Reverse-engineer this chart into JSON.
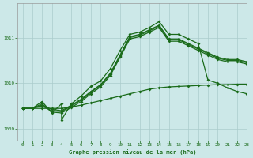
{
  "title": "Graphe pression niveau de la mer (hPa)",
  "bg_color": "#cce8e8",
  "line_color": "#1a6b1a",
  "grid_color": "#aacccc",
  "xlim": [
    -0.5,
    23
  ],
  "ylim": [
    1008.75,
    1011.75
  ],
  "yticks": [
    1009,
    1010,
    1011
  ],
  "xticks": [
    0,
    1,
    2,
    3,
    4,
    5,
    6,
    7,
    8,
    9,
    10,
    11,
    12,
    13,
    14,
    15,
    16,
    17,
    18,
    19,
    20,
    21,
    22,
    23
  ],
  "line_main": {
    "x": [
      0,
      1,
      2,
      3,
      4,
      4,
      5,
      6,
      7,
      8,
      9,
      10,
      11,
      12,
      13,
      14,
      15,
      16,
      17,
      18,
      19,
      20,
      21,
      22,
      23
    ],
    "y": [
      1009.45,
      1009.45,
      1009.6,
      1009.35,
      1009.55,
      1009.2,
      1009.55,
      1009.72,
      1009.93,
      1010.05,
      1010.32,
      1010.72,
      1011.07,
      1011.12,
      1011.22,
      1011.35,
      1011.07,
      1011.07,
      1010.97,
      1010.87,
      1010.07,
      1010.0,
      1009.9,
      1009.82,
      1009.77
    ]
  },
  "line_upper1": {
    "x": [
      0,
      1,
      2,
      3,
      4,
      5,
      6,
      7,
      8,
      9,
      10,
      11,
      12,
      13,
      14,
      15,
      16,
      17,
      18,
      19,
      20,
      21,
      22,
      23
    ],
    "y": [
      1009.45,
      1009.45,
      1009.52,
      1009.43,
      1009.4,
      1009.52,
      1009.65,
      1009.82,
      1009.97,
      1010.22,
      1010.62,
      1011.02,
      1011.07,
      1011.17,
      1011.27,
      1010.97,
      1010.97,
      1010.87,
      1010.77,
      1010.67,
      1010.57,
      1010.52,
      1010.52,
      1010.47
    ]
  },
  "line_upper2": {
    "x": [
      0,
      1,
      2,
      3,
      4,
      5,
      6,
      7,
      8,
      9,
      10,
      11,
      12,
      13,
      14,
      15,
      16,
      17,
      18,
      19,
      20,
      21,
      22,
      23
    ],
    "y": [
      1009.45,
      1009.45,
      1009.5,
      1009.4,
      1009.38,
      1009.5,
      1009.63,
      1009.8,
      1009.95,
      1010.2,
      1010.6,
      1011.0,
      1011.05,
      1011.15,
      1011.25,
      1010.95,
      1010.95,
      1010.85,
      1010.75,
      1010.65,
      1010.55,
      1010.5,
      1010.5,
      1010.45
    ]
  },
  "line_upper3": {
    "x": [
      0,
      1,
      2,
      3,
      4,
      5,
      6,
      7,
      8,
      9,
      10,
      11,
      12,
      13,
      14,
      15,
      16,
      17,
      18,
      19,
      20,
      21,
      22,
      23
    ],
    "y": [
      1009.45,
      1009.45,
      1009.55,
      1009.37,
      1009.35,
      1009.47,
      1009.6,
      1009.77,
      1009.92,
      1010.17,
      1010.57,
      1010.97,
      1011.02,
      1011.12,
      1011.22,
      1010.92,
      1010.92,
      1010.82,
      1010.72,
      1010.62,
      1010.52,
      1010.47,
      1010.47,
      1010.42
    ]
  },
  "line_flat": {
    "x": [
      0,
      1,
      2,
      3,
      4,
      5,
      6,
      7,
      8,
      9,
      10,
      11,
      12,
      13,
      14,
      15,
      16,
      17,
      18,
      19,
      20,
      21,
      22,
      23
    ],
    "y": [
      1009.45,
      1009.45,
      1009.45,
      1009.45,
      1009.45,
      1009.48,
      1009.52,
      1009.57,
      1009.62,
      1009.67,
      1009.72,
      1009.77,
      1009.82,
      1009.87,
      1009.9,
      1009.92,
      1009.93,
      1009.94,
      1009.95,
      1009.96,
      1009.97,
      1009.97,
      1009.98,
      1009.98
    ]
  }
}
